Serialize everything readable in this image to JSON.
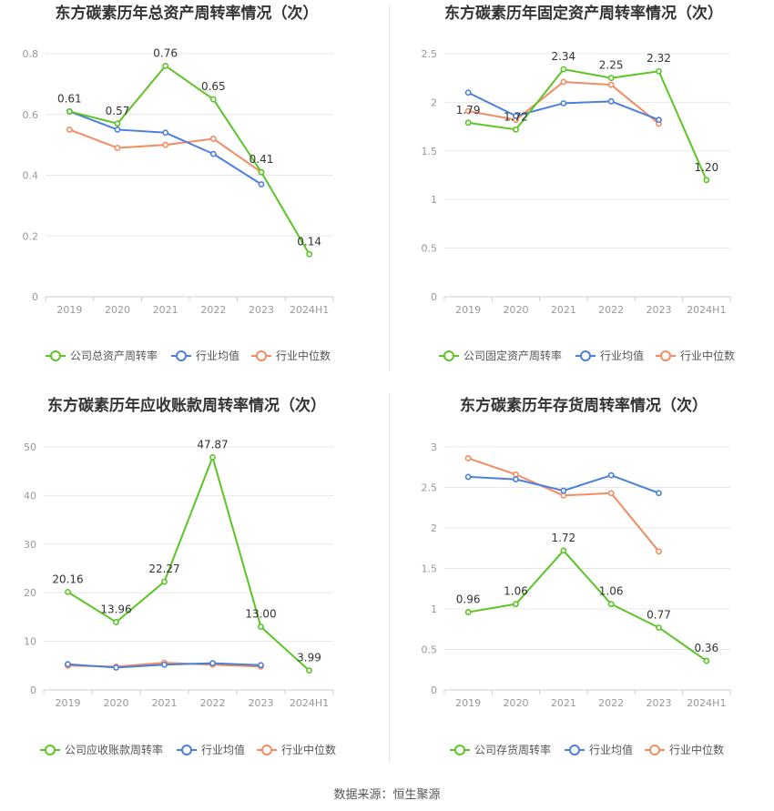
{
  "colors": {
    "company": "#5bc427",
    "industry_avg": "#4a7fdc",
    "industry_median": "#f28c62",
    "grid": "#e8e8e8",
    "axis_text": "#999999",
    "title_text": "#333333",
    "label_text": "#333333"
  },
  "legend": {
    "avg": "行业均值",
    "median": "行业中位数"
  },
  "source": "数据来源：恒生聚源",
  "chart_data": [
    {
      "type": "line",
      "title": "东方碳素历年总资产周转率情况（次）",
      "categories": [
        "2019",
        "2020",
        "2021",
        "2022",
        "2023",
        "2024H1"
      ],
      "ylim": [
        0,
        0.8
      ],
      "yticks": [
        "0",
        "0.2",
        "0.4",
        "0.6",
        "0.8"
      ],
      "ytick_values": [
        0,
        0.2,
        0.4,
        0.6,
        0.8
      ],
      "legend_position": "bottom",
      "series": [
        {
          "name": "公司总资产周转率",
          "key": "company",
          "values": [
            0.61,
            0.57,
            0.76,
            0.65,
            0.41,
            0.14
          ],
          "labels": [
            "0.61",
            "0.57",
            "0.76",
            "0.65",
            "0.41",
            "0.14"
          ]
        },
        {
          "name": "行业均值",
          "key": "industry_avg",
          "values": [
            0.61,
            0.55,
            0.54,
            0.47,
            0.37,
            null
          ]
        },
        {
          "name": "行业中位数",
          "key": "industry_median",
          "values": [
            0.55,
            0.49,
            0.5,
            0.52,
            0.41,
            null
          ]
        }
      ]
    },
    {
      "type": "line",
      "title": "东方碳素历年固定资产周转率情况（次）",
      "categories": [
        "2019",
        "2020",
        "2021",
        "2022",
        "2023",
        "2024H1"
      ],
      "ylim": [
        0,
        2.5
      ],
      "yticks": [
        "0",
        "0.5",
        "1",
        "1.5",
        "2",
        "2.5"
      ],
      "ytick_values": [
        0,
        0.5,
        1,
        1.5,
        2,
        2.5
      ],
      "legend_position": "bottom",
      "series": [
        {
          "name": "公司固定资产周转率",
          "key": "company",
          "values": [
            1.79,
            1.72,
            2.34,
            2.25,
            2.32,
            1.2
          ],
          "labels": [
            "1.79",
            "1.72",
            "2.34",
            "2.25",
            "2.32",
            "1.20"
          ]
        },
        {
          "name": "行业均值",
          "key": "industry_avg",
          "values": [
            2.1,
            1.86,
            1.99,
            2.01,
            1.82,
            null
          ]
        },
        {
          "name": "行业中位数",
          "key": "industry_median",
          "values": [
            1.91,
            1.82,
            2.21,
            2.18,
            1.78,
            null
          ]
        }
      ]
    },
    {
      "type": "line",
      "title": "东方碳素历年应收账款周转率情况（次）",
      "categories": [
        "2019",
        "2020",
        "2021",
        "2022",
        "2023",
        "2024H1"
      ],
      "ylim": [
        0,
        50
      ],
      "yticks": [
        "0",
        "10",
        "20",
        "30",
        "40",
        "50"
      ],
      "ytick_values": [
        0,
        10,
        20,
        30,
        40,
        50
      ],
      "legend_position": "bottom",
      "series": [
        {
          "name": "公司应收账款周转率",
          "key": "company",
          "values": [
            20.16,
            13.96,
            22.27,
            47.87,
            13.0,
            3.99
          ],
          "labels": [
            "20.16",
            "13.96",
            "22.27",
            "47.87",
            "13.00",
            "3.99"
          ]
        },
        {
          "name": "行业均值",
          "key": "industry_avg",
          "values": [
            5.3,
            4.6,
            5.2,
            5.5,
            5.1,
            null
          ]
        },
        {
          "name": "行业中位数",
          "key": "industry_median",
          "values": [
            5.0,
            4.8,
            5.6,
            5.2,
            4.8,
            null
          ]
        }
      ]
    },
    {
      "type": "line",
      "title": "东方碳素历年存货周转率情况（次）",
      "categories": [
        "2019",
        "2020",
        "2021",
        "2022",
        "2023",
        "2024H1"
      ],
      "ylim": [
        0,
        3
      ],
      "yticks": [
        "0",
        "0.5",
        "1",
        "1.5",
        "2",
        "2.5",
        "3"
      ],
      "ytick_values": [
        0,
        0.5,
        1,
        1.5,
        2,
        2.5,
        3
      ],
      "legend_position": "bottom",
      "series": [
        {
          "name": "公司存货周转率",
          "key": "company",
          "values": [
            0.96,
            1.06,
            1.72,
            1.06,
            0.77,
            0.36
          ],
          "labels": [
            "0.96",
            "1.06",
            "1.72",
            "1.06",
            "0.77",
            "0.36"
          ]
        },
        {
          "name": "行业均值",
          "key": "industry_avg",
          "values": [
            2.63,
            2.6,
            2.46,
            2.65,
            2.43,
            null
          ]
        },
        {
          "name": "行业中位数",
          "key": "industry_median",
          "values": [
            2.86,
            2.66,
            2.4,
            2.43,
            1.71,
            null
          ]
        }
      ]
    }
  ]
}
